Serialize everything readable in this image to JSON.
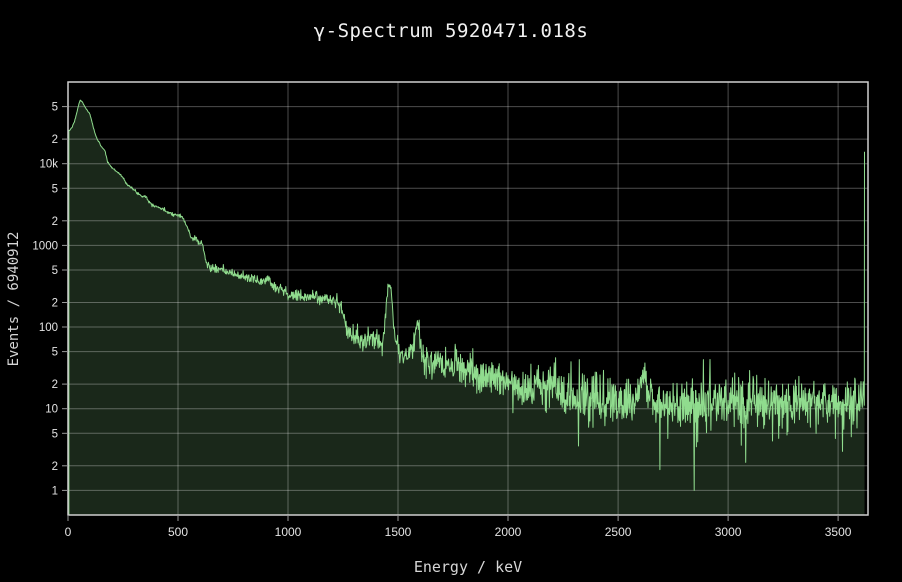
{
  "title": "γ-Spectrum 5920471.018s",
  "measurement": {
    "live_time_seconds": 5920471.018,
    "total_events": 6940912
  },
  "x_axis": {
    "title": "Energy / keV",
    "range": [
      0,
      3636
    ],
    "ticks": [
      0,
      500,
      1000,
      1500,
      2000,
      2500,
      3000,
      3500
    ]
  },
  "y_axis": {
    "title": "Events / 6940912",
    "scale": "log",
    "range": [
      0.5,
      100000
    ],
    "ticks": [
      {
        "value": 50000,
        "label": "5"
      },
      {
        "value": 20000,
        "label": "2"
      },
      {
        "value": 10000,
        "label": "10k"
      },
      {
        "value": 5000,
        "label": "5"
      },
      {
        "value": 2000,
        "label": "2"
      },
      {
        "value": 1000,
        "label": "1000"
      },
      {
        "value": 500,
        "label": "5"
      },
      {
        "value": 200,
        "label": "2"
      },
      {
        "value": 100,
        "label": "100"
      },
      {
        "value": 50,
        "label": "5"
      },
      {
        "value": 20,
        "label": "2"
      },
      {
        "value": 10,
        "label": "10"
      },
      {
        "value": 5,
        "label": "5"
      },
      {
        "value": 2,
        "label": "2"
      },
      {
        "value": 1,
        "label": "1"
      }
    ]
  },
  "colors": {
    "background": "#000000",
    "line": "#90dc8e",
    "fill": "rgba(144,220,142,0.18)",
    "grid": "rgba(255,255,255,0.3)",
    "frame": "#cfcfcf",
    "tick_mark": "#999999",
    "tick_text": "#e3e3e3",
    "title_text": "#f1f1f1",
    "axis_title_text": "#d6d6d6"
  },
  "chart_data": {
    "type": "area",
    "title": "γ-Spectrum 5920471.018s",
    "xlabel": "Energy / keV",
    "ylabel": "Events / 6940912",
    "xlim": [
      0,
      3636
    ],
    "ylim": [
      0.5,
      100000
    ],
    "yscale": "log",
    "grid": true,
    "legend": false,
    "energy_start": 4,
    "energy_end": 3614,
    "bin_width_kev": 2,
    "noise_factor": 1.25,
    "noise_seed": 7,
    "backbone_points": [
      [
        4,
        25000
      ],
      [
        12,
        26500
      ],
      [
        20,
        28500
      ],
      [
        30,
        33000
      ],
      [
        40,
        42000
      ],
      [
        48,
        52000
      ],
      [
        55,
        60000
      ],
      [
        65,
        57000
      ],
      [
        77,
        49500
      ],
      [
        90,
        44000
      ],
      [
        100,
        40000
      ],
      [
        112,
        30000
      ],
      [
        123,
        23300
      ],
      [
        135,
        19500
      ],
      [
        150,
        16500
      ],
      [
        168,
        14400
      ],
      [
        180,
        10500
      ],
      [
        200,
        8900
      ],
      [
        228,
        7800
      ],
      [
        242,
        7200
      ],
      [
        265,
        5800
      ],
      [
        290,
        5000
      ],
      [
        320,
        4300
      ],
      [
        340,
        3900
      ],
      [
        360,
        3500
      ],
      [
        385,
        3150
      ],
      [
        410,
        2950
      ],
      [
        440,
        2670
      ],
      [
        480,
        2400
      ],
      [
        505,
        2280
      ],
      [
        525,
        2050
      ],
      [
        545,
        1600
      ],
      [
        565,
        1150
      ],
      [
        585,
        950
      ],
      [
        605,
        880
      ],
      [
        618,
        700
      ],
      [
        632,
        570
      ],
      [
        650,
        530
      ],
      [
        680,
        505
      ],
      [
        715,
        480
      ],
      [
        745,
        450
      ],
      [
        775,
        430
      ],
      [
        805,
        410
      ],
      [
        835,
        390
      ],
      [
        865,
        370
      ],
      [
        895,
        355
      ],
      [
        925,
        330
      ],
      [
        955,
        290
      ],
      [
        985,
        260
      ],
      [
        1015,
        243
      ],
      [
        1060,
        233
      ],
      [
        1110,
        228
      ],
      [
        1160,
        222
      ],
      [
        1200,
        218
      ],
      [
        1225,
        200
      ],
      [
        1240,
        175
      ],
      [
        1252,
        135
      ],
      [
        1262,
        105
      ],
      [
        1275,
        88
      ],
      [
        1290,
        78
      ],
      [
        1310,
        72
      ],
      [
        1340,
        68
      ],
      [
        1370,
        68
      ],
      [
        1400,
        70
      ],
      [
        1430,
        72
      ],
      [
        1460,
        72
      ],
      [
        1480,
        62
      ],
      [
        1500,
        52
      ],
      [
        1520,
        48
      ],
      [
        1545,
        46
      ],
      [
        1575,
        44
      ],
      [
        1600,
        42
      ],
      [
        1650,
        37
      ],
      [
        1700,
        32
      ],
      [
        1750,
        30
      ],
      [
        1800,
        28
      ],
      [
        1850,
        26
      ],
      [
        1900,
        25
      ],
      [
        1950,
        23.5
      ],
      [
        2000,
        22
      ],
      [
        2050,
        20
      ],
      [
        2100,
        18.5
      ],
      [
        2150,
        17.5
      ],
      [
        2200,
        16.5
      ],
      [
        2250,
        15.5
      ],
      [
        2300,
        15
      ],
      [
        2350,
        14
      ],
      [
        2400,
        13.5
      ],
      [
        2450,
        13
      ],
      [
        2500,
        13
      ],
      [
        2560,
        12.5
      ],
      [
        2620,
        12.5
      ],
      [
        2700,
        12
      ],
      [
        2800,
        11.5
      ],
      [
        2900,
        11.5
      ],
      [
        3000,
        11.5
      ],
      [
        3100,
        11.5
      ],
      [
        3200,
        12
      ],
      [
        3300,
        12
      ],
      [
        3400,
        12.5
      ],
      [
        3500,
        12.5
      ],
      [
        3614,
        12.5
      ]
    ],
    "peaks": [
      {
        "center": 352,
        "amp": 350,
        "sigma": 8
      },
      {
        "center": 511,
        "amp": 130,
        "sigma": 9
      },
      {
        "center": 583,
        "amp": 250,
        "sigma": 9
      },
      {
        "center": 609,
        "amp": 220,
        "sigma": 9
      },
      {
        "center": 911,
        "amp": 60,
        "sigma": 9
      },
      {
        "center": 969,
        "amp": 35,
        "sigma": 9
      },
      {
        "center": 1120,
        "amp": 20,
        "sigma": 10
      },
      {
        "center": 1461,
        "amp": 265,
        "sigma": 11
      },
      {
        "center": 1588,
        "amp": 75,
        "sigma": 9
      },
      {
        "center": 1765,
        "amp": 9,
        "sigma": 10
      },
      {
        "center": 2204,
        "amp": 4,
        "sigma": 10
      },
      {
        "center": 2614,
        "amp": 14,
        "sigma": 13
      }
    ],
    "dips": [
      [
        2320,
        3.5
      ],
      [
        2690,
        1.8
      ],
      [
        2846,
        1
      ],
      [
        3080,
        2.2
      ],
      [
        3520,
        3
      ]
    ],
    "overflow_bin": {
      "energy": 3620,
      "counts": 14000
    }
  }
}
